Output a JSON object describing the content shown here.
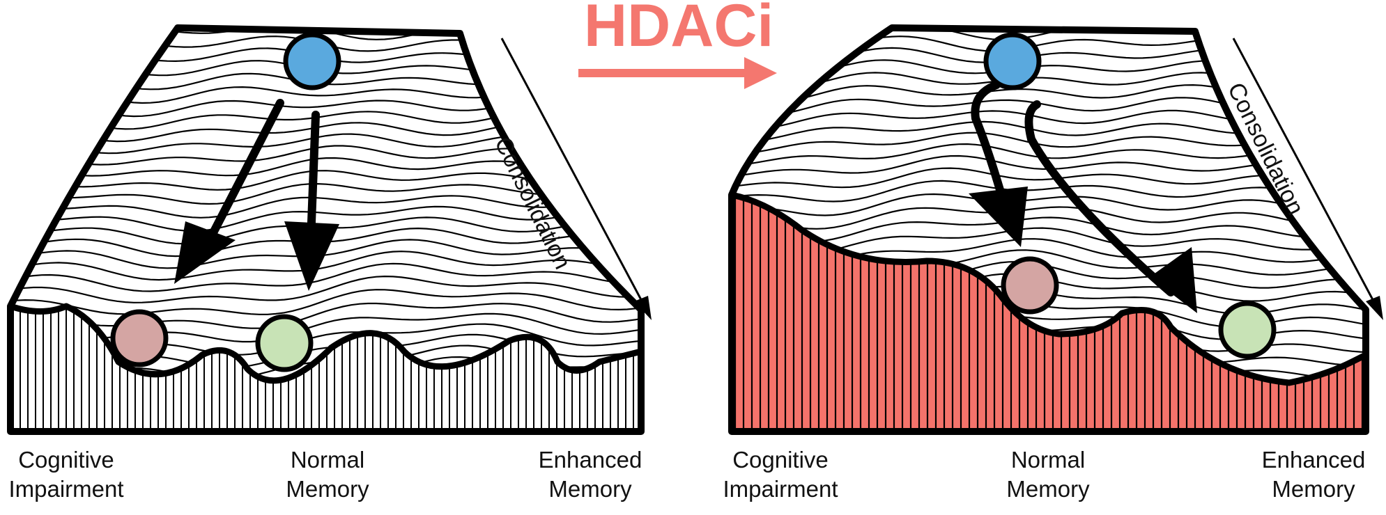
{
  "title": "HDACi",
  "colors": {
    "accent": "#f4776f",
    "accent_fill": "#f4736b",
    "blue_ball": "#5aa9de",
    "pink_ball": "#d4a5a3",
    "green_ball": "#c8e3b6",
    "ink": "#000000"
  },
  "panels": [
    {
      "side_label": "Consolidation",
      "outcomes": [
        {
          "line1": "Cognitive",
          "line2": "Impairment"
        },
        {
          "line1": "Normal",
          "line2": "Memory"
        },
        {
          "line1": "Enhanced",
          "line2": "Memory"
        }
      ]
    },
    {
      "side_label": "Consolidation",
      "outcomes": [
        {
          "line1": "Cognitive",
          "line2": "Impairment"
        },
        {
          "line1": "Normal",
          "line2": "Memory"
        },
        {
          "line1": "Enhanced",
          "line2": "Memory"
        }
      ]
    }
  ]
}
